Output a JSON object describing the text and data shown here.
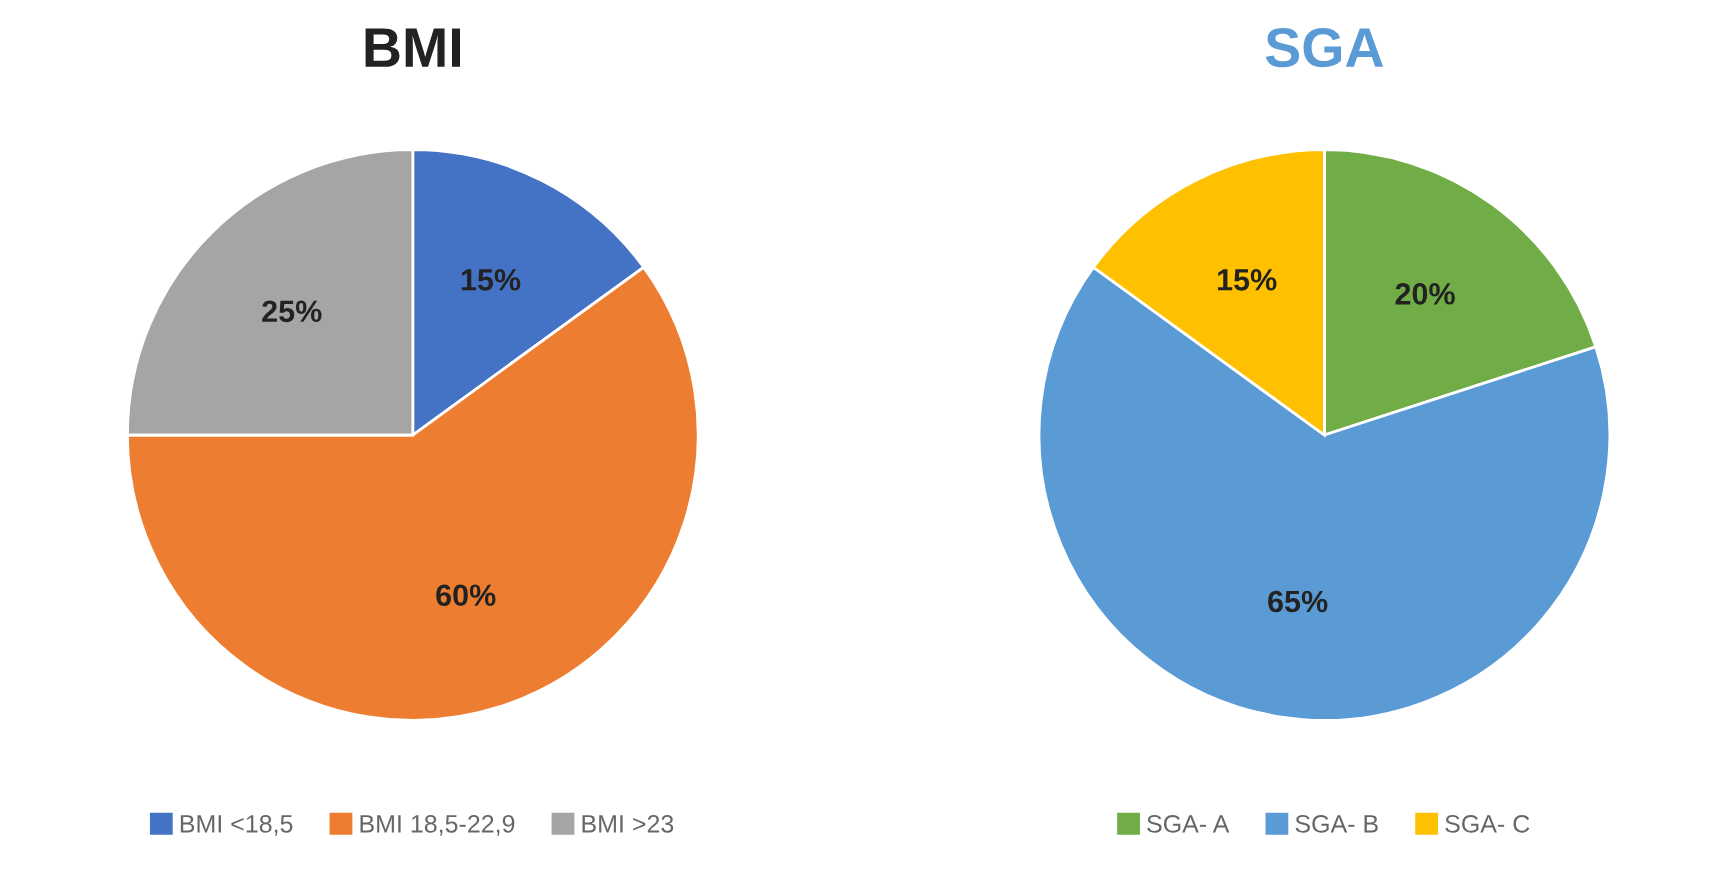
{
  "chart_data": [
    {
      "type": "pie",
      "title": "BMI",
      "categories": [
        "BMI <18,5",
        "BMI 18,5-22,9",
        "BMI >23"
      ],
      "values": [
        15,
        60,
        25
      ],
      "value_labels": [
        "15%",
        "60%",
        "25%"
      ],
      "colors": [
        "#4472c4",
        "#ed7d31",
        "#a5a5a5"
      ],
      "legend": "bottom"
    },
    {
      "type": "pie",
      "title": "SGA",
      "categories": [
        "SGA- A",
        "SGA- B",
        "SGA- C"
      ],
      "values": [
        20,
        65,
        15
      ],
      "value_labels": [
        "20%",
        "65%",
        "15%"
      ],
      "colors": [
        "#70ad47",
        "#5b9bd5",
        "#ffc000"
      ],
      "legend": "bottom"
    }
  ]
}
